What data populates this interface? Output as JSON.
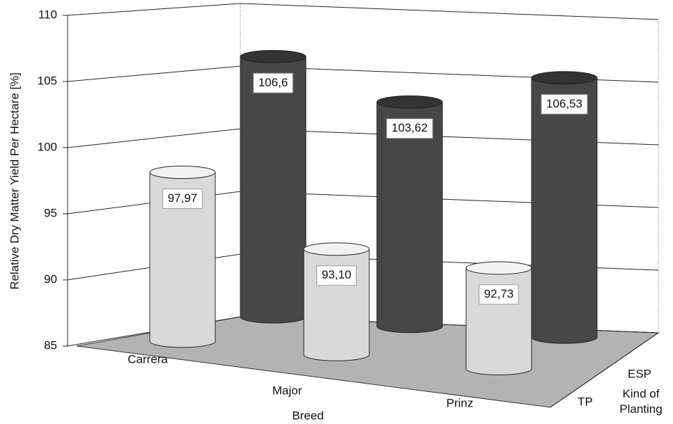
{
  "chart_data": {
    "type": "bar3d",
    "y_label": "Relative Dry Matter Yield Per Hectare [%]",
    "x_label": "Breed",
    "z_label": "Kind of Planting",
    "categories": [
      "Carrera",
      "Major",
      "Prinz"
    ],
    "series": [
      {
        "name": "TP",
        "color": "#d9d9d9",
        "values": [
          97.97,
          93.1,
          92.73
        ],
        "value_labels": [
          "97,97",
          "93,10",
          "92,73"
        ]
      },
      {
        "name": "ESP",
        "color": "#474747",
        "values": [
          106.6,
          103.62,
          106.53
        ],
        "value_labels": [
          "106,6",
          "103,62",
          "106,53"
        ]
      }
    ],
    "ylim": [
      85,
      110
    ],
    "yticks": [
      85,
      90,
      95,
      100,
      105,
      110
    ],
    "grid": true
  }
}
